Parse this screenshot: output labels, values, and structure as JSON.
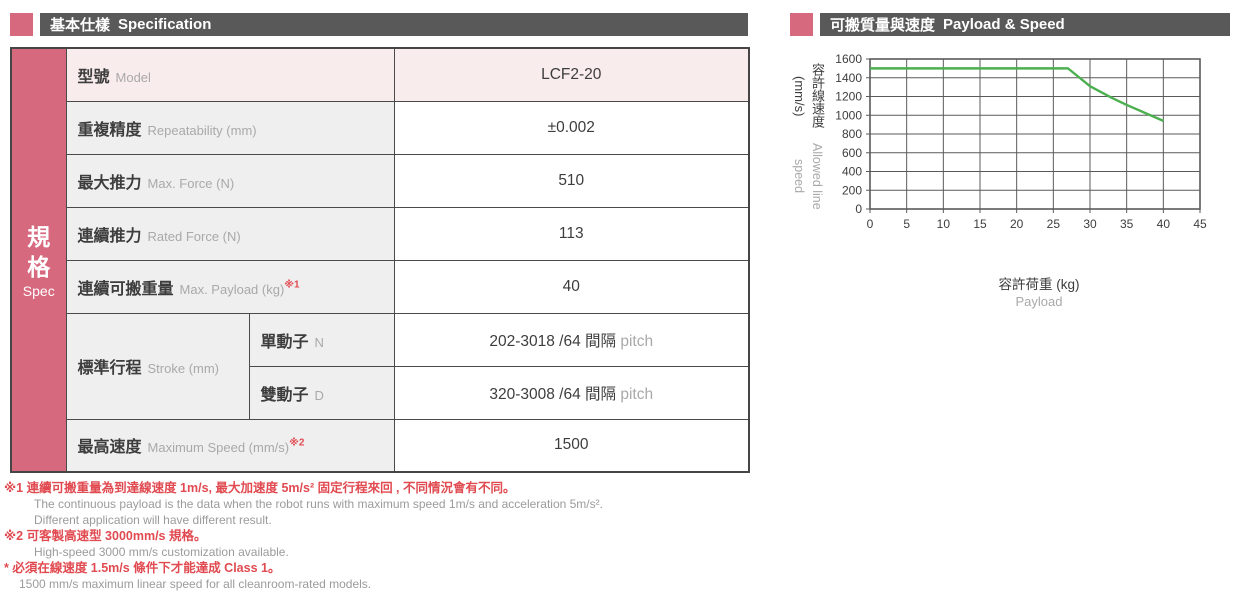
{
  "left_header": {
    "zh": "基本仕樣",
    "en": "Specification"
  },
  "right_header": {
    "zh": "可搬質量與速度",
    "en": "Payload & Speed"
  },
  "spec_table": {
    "side_zh_lines": [
      "規",
      "格"
    ],
    "side_en": "Spec",
    "rows": [
      {
        "label_zh": "型號",
        "label_en": "Model",
        "note_ref": "",
        "value": "LCF2-20",
        "value_suffix": ""
      },
      {
        "label_zh": "重複精度",
        "label_en": "Repeatability (mm)",
        "note_ref": "",
        "value": "±0.002",
        "value_suffix": ""
      },
      {
        "label_zh": "最大推力",
        "label_en": "Max. Force (N)",
        "note_ref": "",
        "value": "510",
        "value_suffix": ""
      },
      {
        "label_zh": "連續推力",
        "label_en": "Rated Force (N)",
        "note_ref": "",
        "value": "113",
        "value_suffix": ""
      },
      {
        "label_zh": "連續可搬重量",
        "label_en": "Max. Payload (kg)",
        "note_ref": "※1",
        "value": "40",
        "value_suffix": ""
      },
      {
        "label_zh": "標準行程",
        "label_en": "Stroke (mm)",
        "sub_zh": "單動子",
        "sub_en": "N",
        "value": "202-3018 /64 間隔",
        "value_suffix": " pitch"
      },
      {
        "sub_zh": "雙動子",
        "sub_en": "D",
        "value": "320-3008 /64 間隔",
        "value_suffix": " pitch"
      },
      {
        "label_zh": "最高速度",
        "label_en": "Maximum Speed (mm/s)",
        "note_ref": "※2",
        "value": "1500",
        "value_suffix": ""
      }
    ]
  },
  "footnotes": [
    {
      "text": "※1 連續可搬重量為到達線速度 1m/s, 最大加速度 5m/s² 固定行程來回 , 不同情況會有不同。"
    },
    {
      "text": "The continuous payload is the data when the robot runs with maximum speed 1m/s and acceleration 5m/s²."
    },
    {
      "text": "Different application will have different result."
    },
    {
      "text": "※2 可客製高速型 3000mm/s 規格。"
    },
    {
      "text": "High-speed 3000 mm/s customization available."
    },
    {
      "text": "* 必須在線速度 1.5m/s 條件下才能達成 Class 1。"
    },
    {
      "text": "1500 mm/s maximum linear speed for all cleanroom-rated models."
    }
  ],
  "chart_data": {
    "type": "line",
    "title": "可搬質量與速度 Payload & Speed",
    "xlabel_zh": "容許荷重 (kg)",
    "xlabel_en": "Payload",
    "ylabel_zh": "容許線速度 (mm/s)",
    "ylabel_en": "Allowed line speed",
    "xlim": [
      0,
      45
    ],
    "ylim": [
      0,
      1600
    ],
    "x_ticks": [
      0,
      5,
      10,
      15,
      20,
      25,
      30,
      35,
      40,
      45
    ],
    "y_ticks": [
      0,
      200,
      400,
      600,
      800,
      1000,
      1200,
      1400,
      1600
    ],
    "grid": true,
    "legend": "none",
    "grid_color": "#5a5a5a",
    "line_color": "#4cb050",
    "series": [
      {
        "name": "allowed-line-speed",
        "points": [
          [
            0,
            1500
          ],
          [
            27,
            1500
          ],
          [
            30,
            1310
          ],
          [
            33,
            1185
          ],
          [
            35,
            1110
          ],
          [
            40,
            940
          ]
        ]
      }
    ]
  }
}
